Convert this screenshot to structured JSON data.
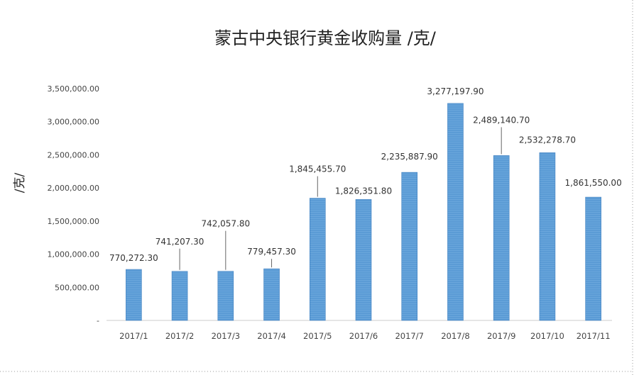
{
  "chart_data": {
    "type": "bar",
    "title": "蒙古中央银行黄金收购量 /克/",
    "ylabel": "/克/",
    "xlabel": "",
    "categories": [
      "2017/1",
      "2017/2",
      "2017/3",
      "2017/4",
      "2017/5",
      "2017/6",
      "2017/7",
      "2017/8",
      "2017/9",
      "2017/10",
      "2017/11"
    ],
    "values": [
      770272.3,
      741207.3,
      742057.8,
      779457.3,
      1845455.7,
      1826351.8,
      2235887.9,
      3277197.9,
      2489140.7,
      2532278.7,
      1861550.0
    ],
    "data_labels": [
      "770,272.30",
      "741,207.30",
      "742,057.80",
      "779,457.30",
      "1,845,455.70",
      "1,826,351.80",
      "2,235,887.90",
      "3,277,197.90",
      "2,489,140.70",
      "2,532,278.70",
      "1,861,550.00"
    ],
    "ylim": [
      0,
      3500000
    ],
    "yticks": [
      0,
      500000,
      1000000,
      1500000,
      2000000,
      2500000,
      3000000,
      3500000
    ],
    "ytick_labels": [
      "-",
      "500,000.00",
      "1,000,000.00",
      "1,500,000.00",
      "2,000,000.00",
      "2,500,000.00",
      "3,000,000.00",
      "3,500,000.00"
    ],
    "grid": false,
    "colors": {
      "bar": "#5b9bd5",
      "bar_edge": "#3f7fbf",
      "leader": "#666666"
    }
  }
}
